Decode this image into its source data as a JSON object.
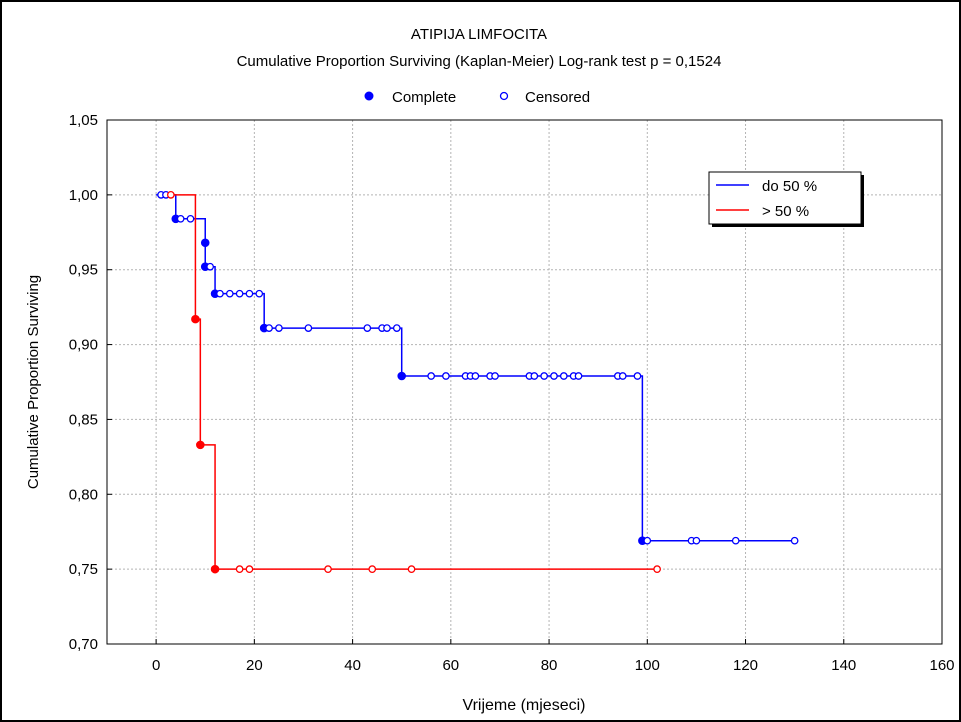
{
  "chart_data": {
    "type": "line",
    "subtype": "kaplan-meier",
    "title": "ATIPIJA LIMFOCITA",
    "subtitle": "Cumulative Proportion Surviving (Kaplan-Meier)  Log-rank test  p = 0,1524",
    "xlabel": "Vrijeme (mjeseci)",
    "ylabel": "Cumulative Proportion Surviving",
    "xlim": [
      -10,
      160
    ],
    "ylim": [
      0.7,
      1.05
    ],
    "xticks": [
      "0",
      "20",
      "40",
      "60",
      "80",
      "100",
      "120",
      "140",
      "160"
    ],
    "yticks": [
      "0,70",
      "0,75",
      "0,80",
      "0,85",
      "0,90",
      "0,95",
      "1,00",
      "1,05"
    ],
    "grid": true,
    "marker_legend": {
      "complete": "Complete",
      "censored": "Censored"
    },
    "legend_position": "top-right",
    "series": [
      {
        "name": "do 50 %",
        "color": "#0000ff",
        "steps": [
          [
            0,
            1.0
          ],
          [
            4,
            0.984
          ],
          [
            10,
            0.968
          ],
          [
            10,
            0.952
          ],
          [
            12,
            0.934
          ],
          [
            22,
            0.911
          ],
          [
            50,
            0.879
          ],
          [
            99,
            0.769
          ],
          [
            130,
            0.769
          ]
        ],
        "complete": [
          [
            4,
            0.984
          ],
          [
            10,
            0.968
          ],
          [
            10,
            0.952
          ],
          [
            12,
            0.934
          ],
          [
            22,
            0.911
          ],
          [
            50,
            0.879
          ],
          [
            99,
            0.769
          ]
        ],
        "censored": [
          [
            1,
            1.0
          ],
          [
            2,
            1.0
          ],
          [
            5,
            0.984
          ],
          [
            7,
            0.984
          ],
          [
            11,
            0.952
          ],
          [
            13,
            0.934
          ],
          [
            15,
            0.934
          ],
          [
            17,
            0.934
          ],
          [
            19,
            0.934
          ],
          [
            21,
            0.934
          ],
          [
            23,
            0.911
          ],
          [
            25,
            0.911
          ],
          [
            31,
            0.911
          ],
          [
            43,
            0.911
          ],
          [
            46,
            0.911
          ],
          [
            47,
            0.911
          ],
          [
            49,
            0.911
          ],
          [
            56,
            0.879
          ],
          [
            59,
            0.879
          ],
          [
            63,
            0.879
          ],
          [
            64,
            0.879
          ],
          [
            65,
            0.879
          ],
          [
            68,
            0.879
          ],
          [
            69,
            0.879
          ],
          [
            76,
            0.879
          ],
          [
            77,
            0.879
          ],
          [
            79,
            0.879
          ],
          [
            81,
            0.879
          ],
          [
            83,
            0.879
          ],
          [
            85,
            0.879
          ],
          [
            86,
            0.879
          ],
          [
            94,
            0.879
          ],
          [
            95,
            0.879
          ],
          [
            98,
            0.879
          ],
          [
            100,
            0.769
          ],
          [
            109,
            0.769
          ],
          [
            110,
            0.769
          ],
          [
            118,
            0.769
          ],
          [
            130,
            0.769
          ]
        ]
      },
      {
        "name": "> 50 %",
        "color": "#ff0000",
        "steps": [
          [
            3,
            1.0
          ],
          [
            8,
            0.917
          ],
          [
            9,
            0.833
          ],
          [
            12,
            0.75
          ],
          [
            102,
            0.75
          ]
        ],
        "complete": [
          [
            8,
            0.917
          ],
          [
            9,
            0.833
          ],
          [
            12,
            0.75
          ]
        ],
        "censored": [
          [
            3,
            1.0
          ],
          [
            17,
            0.75
          ],
          [
            19,
            0.75
          ],
          [
            35,
            0.75
          ],
          [
            44,
            0.75
          ],
          [
            52,
            0.75
          ],
          [
            102,
            0.75
          ]
        ]
      }
    ]
  }
}
